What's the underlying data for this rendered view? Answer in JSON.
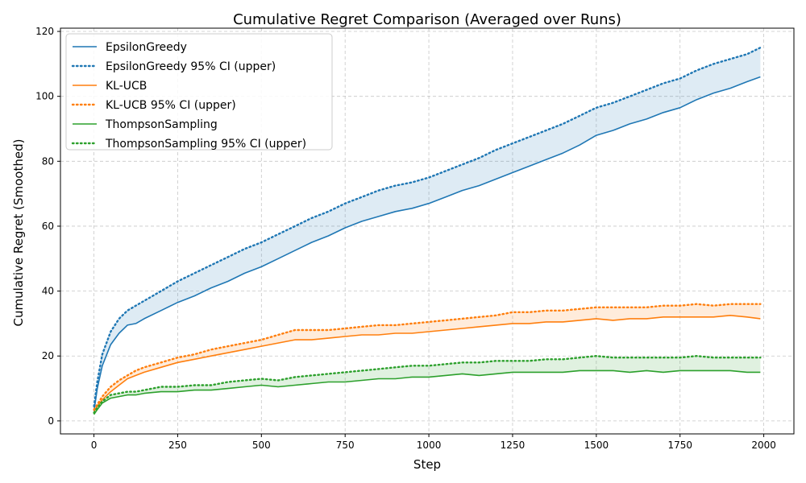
{
  "chart_data": {
    "type": "line",
    "title": "Cumulative Regret Comparison (Averaged over Runs)",
    "xlabel": "Step",
    "ylabel": "Cumulative Regret (Smoothed)",
    "xlim": [
      -100,
      2090
    ],
    "ylim": [
      -4,
      121
    ],
    "x_ticks": [
      0,
      250,
      500,
      750,
      1000,
      1250,
      1500,
      1750,
      2000
    ],
    "y_ticks": [
      0,
      20,
      40,
      60,
      80,
      100,
      120
    ],
    "grid": true,
    "legend_position": "upper-left",
    "x": [
      0,
      10,
      25,
      50,
      75,
      100,
      125,
      150,
      200,
      250,
      300,
      350,
      400,
      450,
      500,
      550,
      600,
      650,
      700,
      750,
      800,
      850,
      900,
      950,
      1000,
      1050,
      1100,
      1150,
      1200,
      1250,
      1300,
      1350,
      1400,
      1450,
      1500,
      1550,
      1600,
      1650,
      1700,
      1750,
      1800,
      1850,
      1900,
      1950,
      1990
    ],
    "series": [
      {
        "name": "EpsilonGreedy",
        "color": "#1f77b4",
        "mean": [
          3.0,
          10.0,
          17.0,
          23.5,
          27.0,
          29.5,
          30.0,
          31.5,
          34.0,
          36.5,
          38.5,
          41.0,
          43.0,
          45.5,
          47.5,
          50.0,
          52.5,
          55.0,
          57.0,
          59.5,
          61.5,
          63.0,
          64.5,
          65.5,
          67.0,
          69.0,
          71.0,
          72.5,
          74.5,
          76.5,
          78.5,
          80.5,
          82.5,
          85.0,
          88.0,
          89.5,
          91.5,
          93.0,
          95.0,
          96.5,
          99.0,
          101.0,
          102.5,
          104.5,
          106.0
        ],
        "upper": [
          4.5,
          12.0,
          20.5,
          27.5,
          31.5,
          34.0,
          35.5,
          37.0,
          40.0,
          43.0,
          45.5,
          48.0,
          50.5,
          53.0,
          55.0,
          57.5,
          60.0,
          62.5,
          64.5,
          67.0,
          69.0,
          71.0,
          72.5,
          73.5,
          75.0,
          77.0,
          79.0,
          81.0,
          83.5,
          85.5,
          87.5,
          89.5,
          91.5,
          94.0,
          96.5,
          98.0,
          100.0,
          102.0,
          104.0,
          105.5,
          108.0,
          110.0,
          111.5,
          113.0,
          115.0
        ]
      },
      {
        "name": "KL-UCB",
        "color": "#ff7f0e",
        "mean": [
          3.0,
          4.5,
          6.5,
          9.0,
          11.0,
          13.0,
          14.0,
          15.0,
          16.5,
          18.0,
          19.0,
          20.0,
          21.0,
          22.0,
          23.0,
          24.0,
          25.0,
          25.0,
          25.5,
          26.0,
          26.5,
          26.5,
          27.0,
          27.0,
          27.5,
          28.0,
          28.5,
          29.0,
          29.5,
          30.0,
          30.0,
          30.5,
          30.5,
          31.0,
          31.5,
          31.0,
          31.5,
          31.5,
          32.0,
          32.0,
          32.0,
          32.0,
          32.5,
          32.0,
          31.5
        ],
        "upper": [
          3.5,
          5.0,
          7.5,
          10.5,
          12.5,
          14.0,
          15.5,
          16.5,
          18.0,
          19.5,
          20.5,
          22.0,
          23.0,
          24.0,
          25.0,
          26.5,
          28.0,
          28.0,
          28.0,
          28.5,
          29.0,
          29.5,
          29.5,
          30.0,
          30.5,
          31.0,
          31.5,
          32.0,
          32.5,
          33.5,
          33.5,
          34.0,
          34.0,
          34.5,
          35.0,
          35.0,
          35.0,
          35.0,
          35.5,
          35.5,
          36.0,
          35.5,
          36.0,
          36.0,
          36.0
        ]
      },
      {
        "name": "ThompsonSampling",
        "color": "#2ca02c",
        "mean": [
          2.0,
          3.5,
          5.5,
          7.0,
          7.5,
          8.0,
          8.0,
          8.5,
          9.0,
          9.0,
          9.5,
          9.5,
          10.0,
          10.5,
          11.0,
          10.5,
          11.0,
          11.5,
          12.0,
          12.0,
          12.5,
          13.0,
          13.0,
          13.5,
          13.5,
          14.0,
          14.5,
          14.0,
          14.5,
          15.0,
          15.0,
          15.0,
          15.0,
          15.5,
          15.5,
          15.5,
          15.0,
          15.5,
          15.0,
          15.5,
          15.5,
          15.5,
          15.5,
          15.0,
          15.0
        ],
        "upper": [
          2.5,
          4.0,
          6.0,
          8.0,
          8.5,
          9.0,
          9.0,
          9.5,
          10.5,
          10.5,
          11.0,
          11.0,
          12.0,
          12.5,
          13.0,
          12.5,
          13.5,
          14.0,
          14.5,
          15.0,
          15.5,
          16.0,
          16.5,
          17.0,
          17.0,
          17.5,
          18.0,
          18.0,
          18.5,
          18.5,
          18.5,
          19.0,
          19.0,
          19.5,
          20.0,
          19.5,
          19.5,
          19.5,
          19.5,
          19.5,
          20.0,
          19.5,
          19.5,
          19.5,
          19.5
        ]
      }
    ],
    "legend": [
      "EpsilonGreedy",
      "EpsilonGreedy 95% CI (upper)",
      "KL-UCB",
      "KL-UCB 95% CI (upper)",
      "ThompsonSampling",
      "ThompsonSampling 95% CI (upper)"
    ]
  }
}
